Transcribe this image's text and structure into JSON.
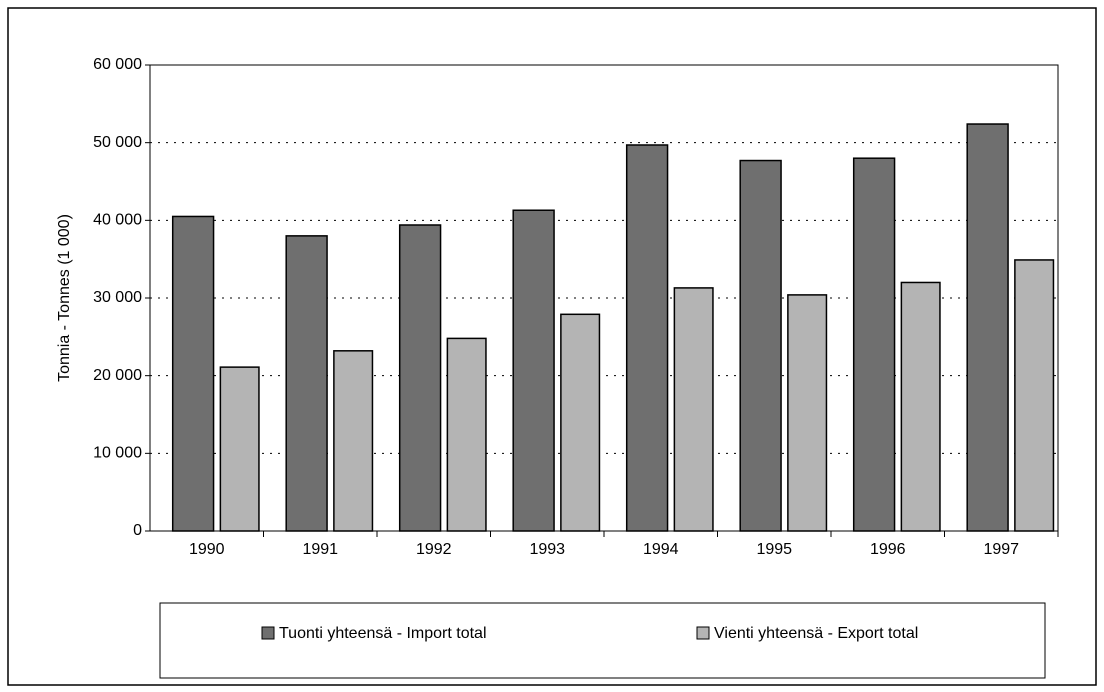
{
  "chart_data": {
    "type": "bar",
    "y_label": "Tonnia - Tonnes (1 000)",
    "categories": [
      "1990",
      "1991",
      "1992",
      "1993",
      "1994",
      "1995",
      "1996",
      "1997"
    ],
    "series": [
      {
        "name": "Tuonti yhteensä - Import total",
        "color": "#6f6f6f",
        "values": [
          40500,
          38000,
          39400,
          41300,
          49700,
          47700,
          48000,
          52400
        ]
      },
      {
        "name": "Vienti yhteensä - Export total",
        "color": "#b4b4b4",
        "values": [
          21100,
          23200,
          24800,
          27900,
          31300,
          30400,
          32000,
          34900
        ]
      }
    ],
    "ylim": [
      0,
      60000
    ],
    "yticks": [
      0,
      {
        "value": 10000,
        "label": "10 000"
      },
      {
        "value": 20000,
        "label": "20 000"
      },
      {
        "value": 30000,
        "label": "30 000"
      },
      {
        "value": 40000,
        "label": "40 000"
      },
      {
        "value": 50000,
        "label": "50 000"
      },
      {
        "value": 60000,
        "label": "60 000"
      }
    ],
    "grid": true,
    "legend": "bottom"
  }
}
